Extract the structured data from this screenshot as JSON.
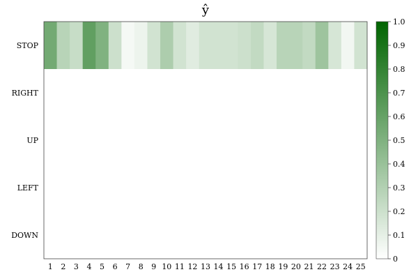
{
  "chart_data": {
    "type": "heatmap",
    "title": "ŷ",
    "xlabel": "",
    "ylabel": "",
    "x_categories": [
      "1",
      "2",
      "3",
      "4",
      "5",
      "6",
      "7",
      "8",
      "9",
      "10",
      "11",
      "12",
      "13",
      "14",
      "15",
      "16",
      "17",
      "18",
      "19",
      "20",
      "21",
      "22",
      "23",
      "24",
      "25"
    ],
    "y_categories": [
      "STOP",
      "RIGHT",
      "UP",
      "LEFT",
      "DOWN"
    ],
    "values": [
      [
        0.55,
        0.28,
        0.22,
        0.62,
        0.5,
        0.2,
        0.04,
        0.07,
        0.18,
        0.32,
        0.18,
        0.12,
        0.18,
        0.18,
        0.18,
        0.2,
        0.24,
        0.16,
        0.28,
        0.28,
        0.24,
        0.38,
        0.16,
        0.05,
        0.18
      ],
      [
        0,
        0,
        0,
        0,
        0,
        0,
        0,
        0,
        0,
        0,
        0,
        0,
        0,
        0,
        0,
        0,
        0,
        0,
        0,
        0,
        0,
        0,
        0,
        0,
        0
      ],
      [
        0,
        0,
        0,
        0,
        0,
        0,
        0,
        0,
        0,
        0,
        0,
        0,
        0,
        0,
        0,
        0,
        0,
        0,
        0,
        0,
        0,
        0,
        0,
        0,
        0
      ],
      [
        0,
        0,
        0,
        0,
        0,
        0,
        0,
        0,
        0,
        0,
        0,
        0,
        0,
        0,
        0,
        0,
        0,
        0,
        0,
        0,
        0,
        0,
        0,
        0,
        0
      ],
      [
        0,
        0,
        0,
        0,
        0,
        0,
        0,
        0,
        0,
        0,
        0,
        0,
        0,
        0,
        0,
        0,
        0,
        0,
        0,
        0,
        0,
        0,
        0,
        0,
        0
      ]
    ],
    "colorbar": {
      "range": [
        0,
        1
      ],
      "ticks": [
        "0",
        "0.1",
        "0.2",
        "0.3",
        "0.4",
        "0.5",
        "0.6",
        "0.7",
        "0.8",
        "0.9",
        "1.0"
      ],
      "color_low": "#ffffff",
      "color_high": "#006400"
    },
    "grid": false
  }
}
